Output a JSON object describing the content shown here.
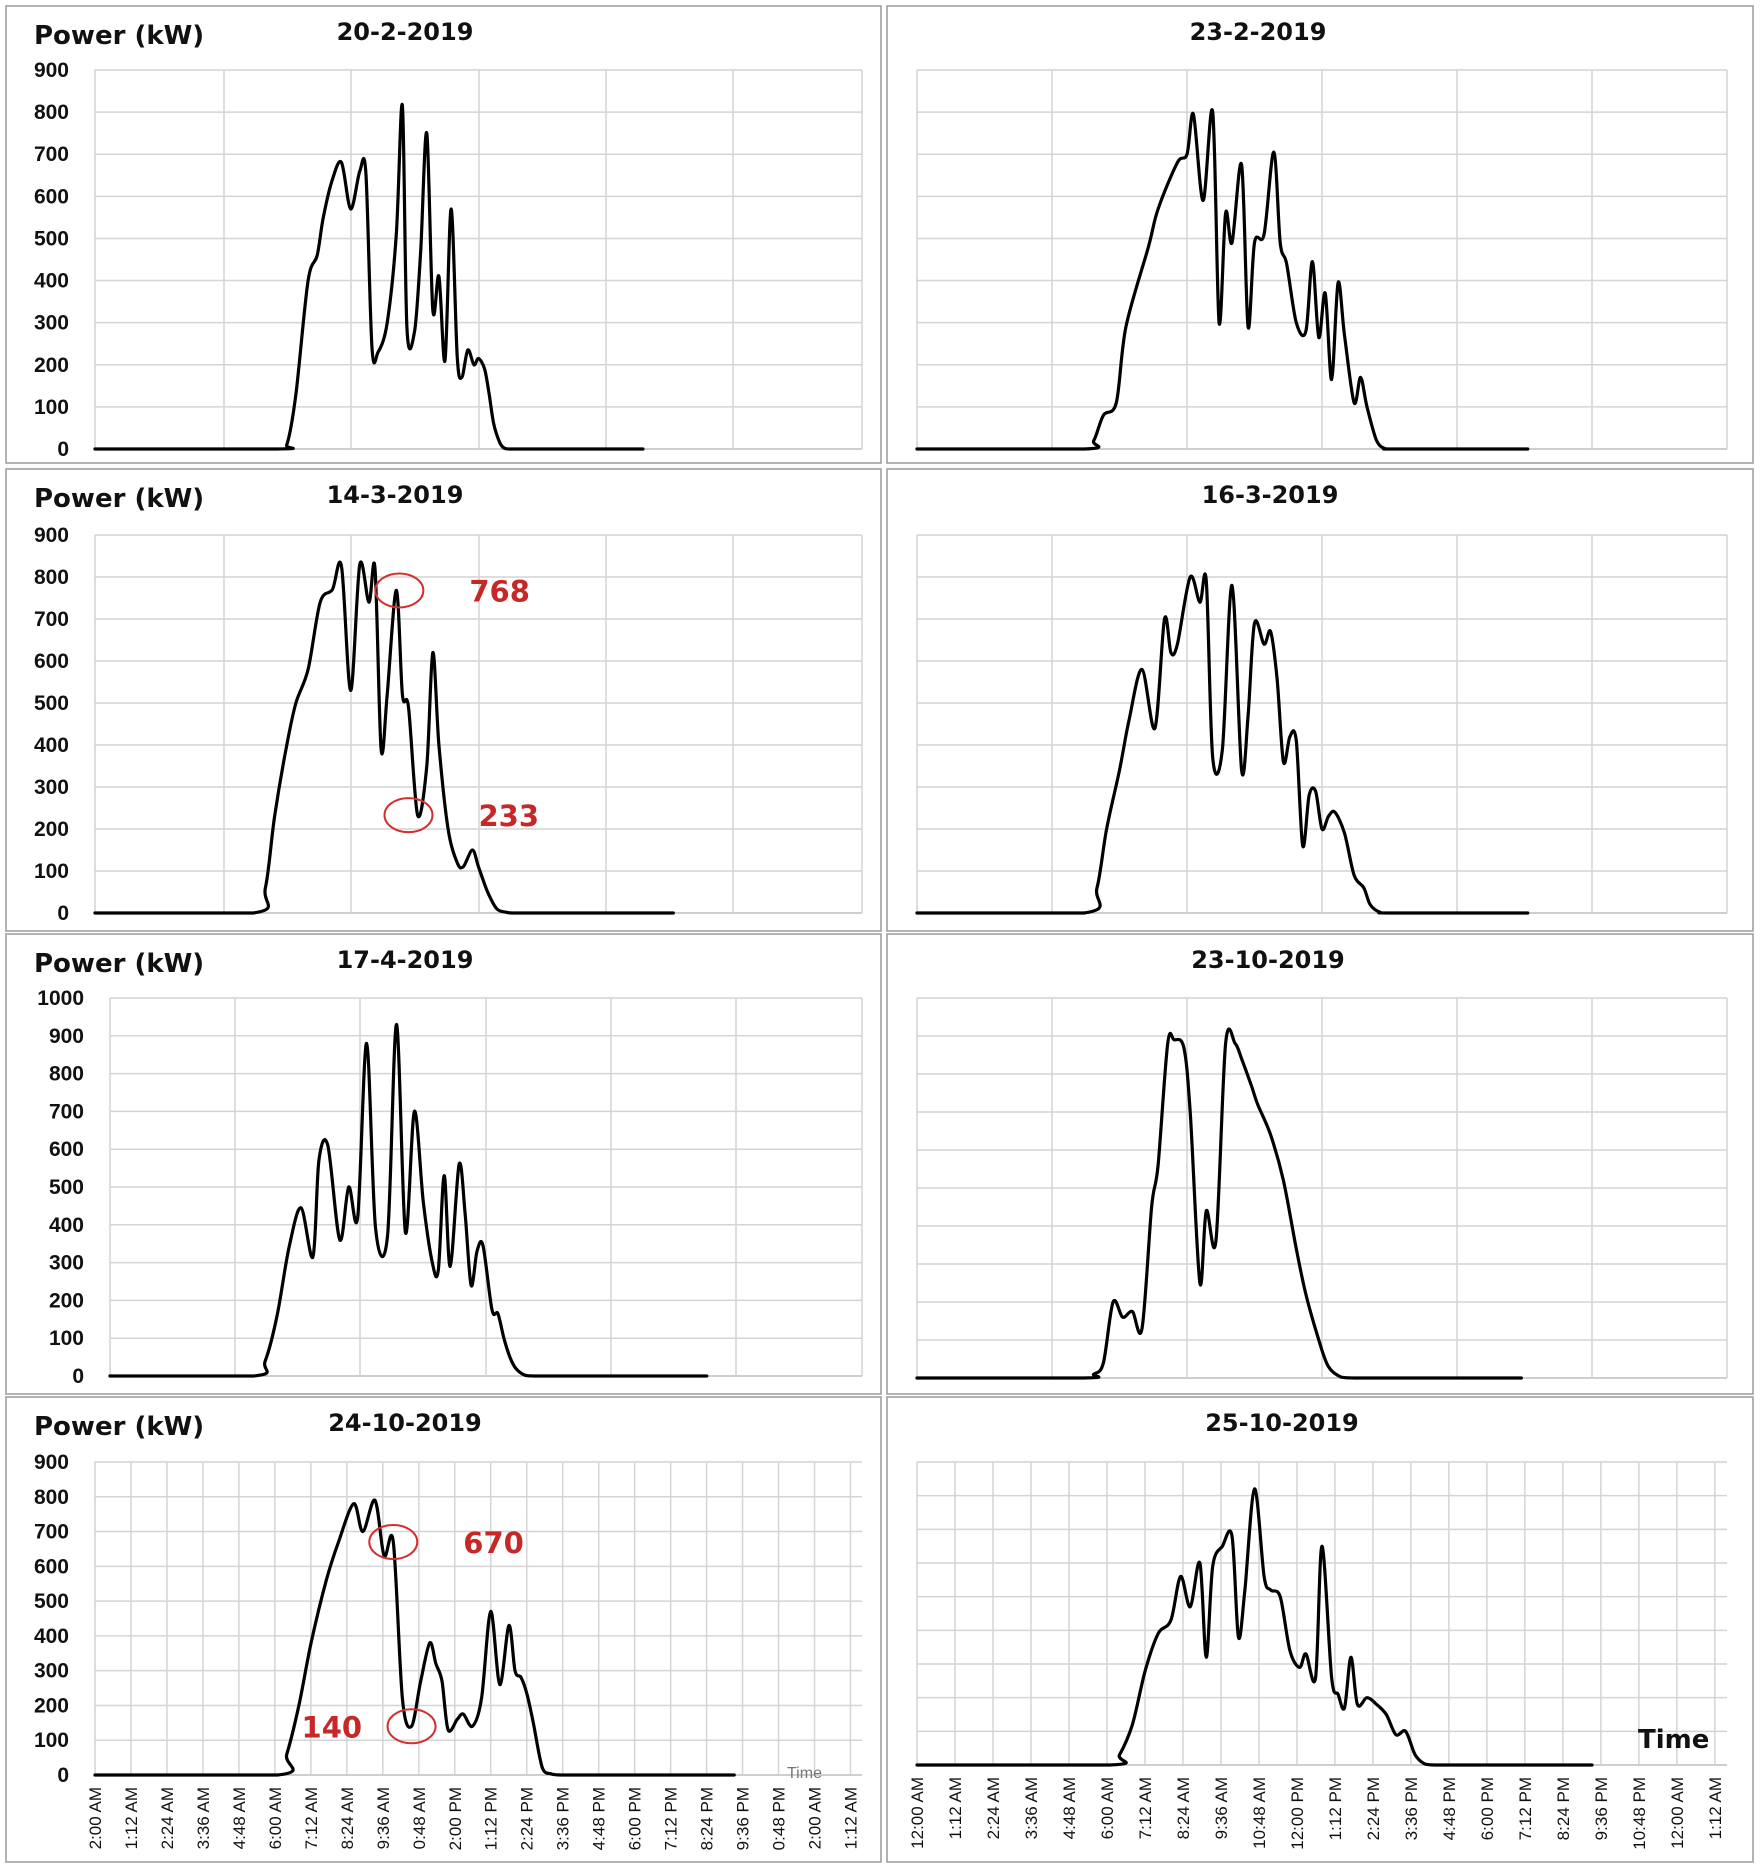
{
  "y_axis_label": "Power (kW)",
  "x_axis_label": "Time",
  "time_ticks": [
    "12:00 AM",
    "1:12 AM",
    "2:24 AM",
    "3:36 AM",
    "4:48 AM",
    "6:00 AM",
    "7:12 AM",
    "8:24 AM",
    "9:36 AM",
    "10:48 AM",
    "12:00 PM",
    "1:12 PM",
    "2:24 PM",
    "3:36 PM",
    "4:48 PM",
    "6:00 PM",
    "7:12 PM",
    "8:24 PM",
    "9:36 PM",
    "10:48 PM",
    "12:00 AM",
    "1:12 AM"
  ],
  "time_ticks_left_printed": [
    "2:00 AM",
    "1:12 AM",
    "2:24 AM",
    "3:36 AM",
    "4:48 AM",
    "6:00 AM",
    "7:12 AM",
    "8:24 AM",
    "9:36 AM",
    "0:48 AM",
    "2:00 PM",
    "1:12 PM",
    "2:24 PM",
    "3:36 PM",
    "4:48 PM",
    "6:00 PM",
    "7:12 PM",
    "8:24 PM",
    "9:36 PM",
    "0:48 PM",
    "2:00 AM",
    "1:12 AM"
  ],
  "chart_data": [
    {
      "type": "line",
      "title": "20-2-2019",
      "ylabel": "Power (kW)",
      "xlabel": "",
      "ylim": [
        0,
        900
      ],
      "yticks": [
        0,
        100,
        200,
        300,
        400,
        500,
        600,
        700,
        800,
        900
      ],
      "x_unit": "hours",
      "x": [
        0,
        6,
        6.3,
        6.6,
        7.0,
        7.3,
        7.5,
        7.8,
        8.1,
        8.4,
        8.7,
        8.9,
        9.1,
        9.3,
        9.6,
        9.9,
        10.1,
        10.25,
        10.5,
        10.7,
        10.9,
        11.1,
        11.3,
        11.5,
        11.7,
        11.9,
        12.05,
        12.25,
        12.45,
        12.6,
        12.8,
        12.95,
        13.1,
        13.3,
        13.45,
        13.6,
        13.8,
        14.0,
        14.3,
        14.6,
        14.8,
        18.0
      ],
      "y": [
        0,
        0,
        10,
        130,
        400,
        460,
        550,
        640,
        680,
        570,
        660,
        655,
        240,
        230,
        300,
        510,
        815,
        285,
        280,
        470,
        750,
        330,
        410,
        210,
        570,
        220,
        170,
        235,
        200,
        215,
        190,
        130,
        60,
        15,
        2,
        0,
        0,
        0,
        0,
        0,
        0,
        0
      ]
    },
    {
      "type": "line",
      "title": "23-2-2019",
      "ylabel": "",
      "xlabel": "",
      "ylim": [
        0,
        900
      ],
      "yticks": [
        0,
        100,
        200,
        300,
        400,
        500,
        600,
        700,
        800,
        900
      ],
      "x_unit": "hours",
      "x": [
        0,
        5.2,
        5.5,
        5.8,
        6.2,
        6.5,
        7.2,
        7.5,
        8.1,
        8.4,
        8.6,
        8.9,
        9.2,
        9.4,
        9.6,
        9.8,
        10.1,
        10.3,
        10.5,
        10.8,
        11.1,
        11.3,
        11.5,
        11.8,
        12.1,
        12.3,
        12.5,
        12.7,
        12.9,
        13.1,
        13.3,
        13.6,
        13.8,
        14.0,
        14.3,
        14.6,
        14.9,
        19.0
      ],
      "y": [
        0,
        0,
        20,
        80,
        110,
        290,
        480,
        570,
        680,
        700,
        795,
        590,
        800,
        300,
        560,
        490,
        675,
        290,
        490,
        510,
        705,
        490,
        440,
        300,
        280,
        445,
        265,
        370,
        165,
        395,
        270,
        110,
        170,
        100,
        20,
        0,
        0,
        0
      ]
    },
    {
      "type": "line",
      "title": "14-3-2019",
      "ylabel": "Power (kW)",
      "xlabel": "",
      "ylim": [
        0,
        900
      ],
      "yticks": [
        0,
        100,
        200,
        300,
        400,
        500,
        600,
        700,
        800,
        900
      ],
      "x_unit": "hours",
      "x": [
        0,
        5.2,
        5.6,
        5.9,
        6.3,
        6.6,
        7.0,
        7.4,
        7.8,
        8.1,
        8.4,
        8.7,
        9.0,
        9.2,
        9.4,
        9.6,
        9.9,
        10.1,
        10.3,
        10.6,
        10.9,
        11.1,
        11.3,
        11.6,
        11.9,
        12.1,
        12.4,
        12.6,
        12.9,
        13.2,
        13.5,
        13.7,
        14.0,
        14.3,
        14.7,
        19.0
      ],
      "y": [
        0,
        0,
        60,
        230,
        400,
        500,
        580,
        740,
        770,
        825,
        530,
        830,
        740,
        820,
        390,
        520,
        768,
        520,
        490,
        233,
        350,
        620,
        400,
        200,
        120,
        110,
        150,
        110,
        50,
        10,
        2,
        0,
        0,
        0,
        0,
        0
      ]
    },
    {
      "type": "line",
      "title": "16-3-2019",
      "ylabel": "",
      "xlabel": "",
      "ylim": [
        0,
        900
      ],
      "yticks": [
        0,
        100,
        200,
        300,
        400,
        500,
        600,
        700,
        800,
        900
      ],
      "x_unit": "hours",
      "x": [
        0,
        5.2,
        5.6,
        5.9,
        6.3,
        6.6,
        7.0,
        7.4,
        7.7,
        7.9,
        8.1,
        8.5,
        8.8,
        9.0,
        9.2,
        9.5,
        9.8,
        10.1,
        10.3,
        10.5,
        10.8,
        11.0,
        11.2,
        11.4,
        11.6,
        11.8,
        12.0,
        12.2,
        12.4,
        12.6,
        12.8,
        13.0,
        13.3,
        13.6,
        13.9,
        14.1,
        14.4,
        14.8,
        19.0
      ],
      "y": [
        0,
        0,
        60,
        200,
        340,
        460,
        580,
        440,
        700,
        620,
        640,
        800,
        740,
        790,
        370,
        390,
        780,
        340,
        470,
        690,
        640,
        670,
        560,
        360,
        420,
        410,
        160,
        280,
        290,
        200,
        230,
        240,
        190,
        90,
        60,
        20,
        2,
        0,
        0
      ]
    },
    {
      "type": "line",
      "title": "17-4-2019",
      "ylabel": "Power (kW)",
      "xlabel": "",
      "ylim": [
        0,
        1000
      ],
      "yticks": [
        0,
        100,
        200,
        300,
        400,
        500,
        600,
        700,
        800,
        900,
        1000
      ],
      "x_unit": "hours",
      "x": [
        0,
        4.8,
        5.2,
        5.6,
        6.0,
        6.4,
        6.8,
        7.0,
        7.3,
        7.7,
        8.0,
        8.3,
        8.6,
        8.9,
        9.3,
        9.6,
        9.9,
        10.2,
        10.5,
        10.8,
        11.0,
        11.2,
        11.4,
        11.7,
        11.9,
        12.1,
        12.3,
        12.5,
        12.8,
        13.0,
        13.2,
        13.4,
        13.6,
        13.9,
        14.2,
        14.5,
        14.8,
        15.0,
        20.0
      ],
      "y": [
        0,
        0,
        40,
        160,
        340,
        445,
        315,
        570,
        610,
        360,
        500,
        420,
        880,
        390,
        370,
        930,
        380,
        700,
        460,
        300,
        280,
        530,
        290,
        560,
        430,
        240,
        330,
        345,
        175,
        165,
        100,
        50,
        20,
        2,
        0,
        0,
        0,
        0,
        0
      ]
    },
    {
      "type": "line",
      "title": "23-10-2019",
      "ylabel": "",
      "xlabel": "",
      "ylim": [
        0,
        1000
      ],
      "yticks": [
        0,
        100,
        200,
        300,
        400,
        500,
        600,
        700,
        800,
        900,
        1000
      ],
      "x_unit": "hours",
      "x": [
        0,
        5.2,
        5.5,
        5.8,
        6.1,
        6.4,
        6.7,
        7.0,
        7.3,
        7.5,
        7.8,
        8.0,
        8.3,
        8.5,
        8.8,
        9.0,
        9.3,
        9.6,
        9.9,
        10.1,
        10.4,
        10.6,
        11.0,
        11.4,
        11.8,
        12.1,
        12.5,
        12.8,
        13.2,
        13.6,
        13.9,
        14.2,
        14.6,
        18.8
      ],
      "y": [
        0,
        0,
        10,
        40,
        200,
        160,
        175,
        130,
        450,
        560,
        880,
        890,
        870,
        700,
        250,
        440,
        360,
        880,
        880,
        840,
        770,
        720,
        640,
        520,
        340,
        220,
        100,
        30,
        2,
        0,
        0,
        0,
        0,
        0
      ]
    },
    {
      "type": "line",
      "title": "24-10-2019",
      "ylabel": "Power (kW)",
      "xlabel": "Time",
      "ylim": [
        0,
        900
      ],
      "yticks": [
        0,
        100,
        200,
        300,
        400,
        500,
        600,
        700,
        800,
        900
      ],
      "x_unit": "hours",
      "x": [
        0,
        6.0,
        6.3,
        6.7,
        7.1,
        7.6,
        8.0,
        8.5,
        8.8,
        9.2,
        9.5,
        9.8,
        10.1,
        10.4,
        10.7,
        11.0,
        11.2,
        11.4,
        11.6,
        11.9,
        12.1,
        12.4,
        12.7,
        13.0,
        13.3,
        13.6,
        13.8,
        14.0,
        14.2,
        14.4,
        14.7,
        15.0,
        15.3,
        15.6,
        16.0,
        21.0
      ],
      "y": [
        0,
        0,
        60,
        200,
        380,
        560,
        670,
        780,
        700,
        790,
        630,
        670,
        220,
        140,
        270,
        380,
        320,
        270,
        130,
        160,
        175,
        140,
        220,
        470,
        260,
        430,
        300,
        280,
        230,
        150,
        20,
        3,
        0,
        0,
        0,
        0
      ]
    },
    {
      "type": "line",
      "title": "25-10-2019",
      "ylabel": "",
      "xlabel": "Time",
      "ylim": [
        0,
        900
      ],
      "yticks": [
        0,
        100,
        200,
        300,
        400,
        500,
        600,
        700,
        800,
        900
      ],
      "x_unit": "hours",
      "x": [
        0,
        6.0,
        6.3,
        6.7,
        7.1,
        7.5,
        7.9,
        8.2,
        8.5,
        8.8,
        9.0,
        9.2,
        9.5,
        9.8,
        10.0,
        10.2,
        10.5,
        10.8,
        11.0,
        11.3,
        11.6,
        11.9,
        12.1,
        12.4,
        12.6,
        12.9,
        13.1,
        13.3,
        13.5,
        13.7,
        14.0,
        14.3,
        14.6,
        14.9,
        15.2,
        15.5,
        15.8,
        16.1,
        16.4,
        16.7,
        21.0
      ],
      "y": [
        0,
        0,
        30,
        120,
        280,
        390,
        430,
        560,
        470,
        600,
        320,
        590,
        650,
        680,
        380,
        520,
        820,
        560,
        520,
        500,
        340,
        290,
        330,
        260,
        650,
        260,
        210,
        170,
        320,
        180,
        200,
        180,
        150,
        90,
        100,
        30,
        3,
        0,
        0,
        0,
        0
      ]
    }
  ],
  "annotations": [
    {
      "chart": 2,
      "label": "768",
      "x": 10.0,
      "y": 768
    },
    {
      "chart": 2,
      "label": "233",
      "x": 10.3,
      "y": 233
    },
    {
      "chart": 6,
      "label": "670",
      "x": 9.8,
      "y": 670
    },
    {
      "chart": 6,
      "label": "140",
      "x": 10.4,
      "y": 140
    }
  ]
}
